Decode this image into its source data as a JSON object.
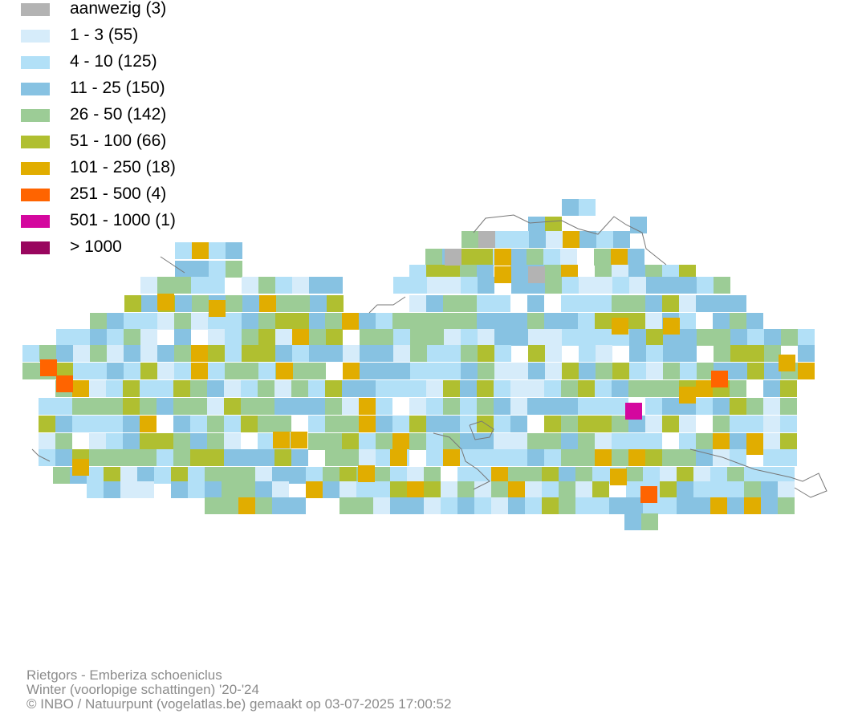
{
  "legend": {
    "items": [
      {
        "label": "aanwezig (3)",
        "color": "#b3b3b3"
      },
      {
        "label": "1 - 3 (55)",
        "color": "#d6ecfa"
      },
      {
        "label": "4 - 10 (125)",
        "color": "#b2e0f7"
      },
      {
        "label": "11 - 25 (150)",
        "color": "#87c2e2"
      },
      {
        "label": "26 - 50 (142)",
        "color": "#9ccc96"
      },
      {
        "label": "51 - 100 (66)",
        "color": "#b0bf30"
      },
      {
        "label": "101 - 250 (18)",
        "color": "#e1ad00"
      },
      {
        "label": "251 - 500 (4)",
        "color": "#ff6400"
      },
      {
        "label": "501 - 1000 (1)",
        "color": "#d4079e"
      },
      {
        "label": "> 1000",
        "color": "#99065e"
      }
    ]
  },
  "credits": {
    "species": "Rietgors - Emberiza schoeniclus",
    "period": "Winter (voorlopige schattingen) '20-'24",
    "source": "© INBO / Natuurpunt (vogelatlas.be) gemaakt op 03-07-2025 17:00:52"
  }
}
